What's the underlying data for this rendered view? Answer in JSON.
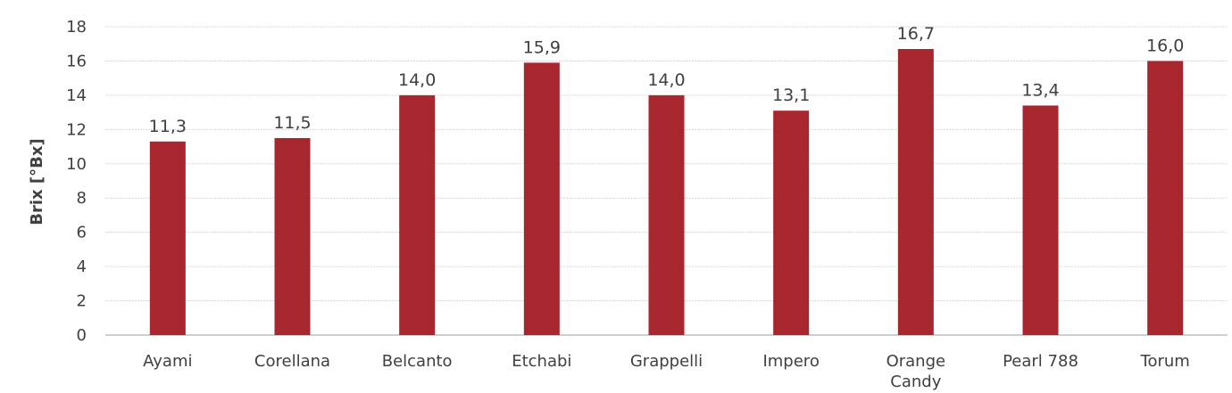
{
  "chart_data": {
    "type": "bar",
    "categories": [
      "Ayami",
      "Corellana",
      "Belcanto",
      "Etchabi",
      "Grappelli",
      "Impero",
      "Orange Candy",
      "Pearl 788",
      "Torum"
    ],
    "category_lines": [
      [
        "Ayami"
      ],
      [
        "Corellana"
      ],
      [
        "Belcanto"
      ],
      [
        "Etchabi"
      ],
      [
        "Grappelli"
      ],
      [
        "Impero"
      ],
      [
        "Orange",
        "Candy"
      ],
      [
        "Pearl 788"
      ],
      [
        "Torum"
      ]
    ],
    "values": [
      11.3,
      11.5,
      14.0,
      15.9,
      14.0,
      13.1,
      16.7,
      13.4,
      16.0
    ],
    "data_labels": [
      "11,3",
      "11,5",
      "14,0",
      "15,9",
      "14,0",
      "13,1",
      "16,7",
      "13,4",
      "16,0"
    ],
    "title": "",
    "xlabel": "",
    "ylabel": "Brix [°Bx]",
    "ylim": [
      0,
      18
    ],
    "yticks": [
      0,
      2,
      4,
      6,
      8,
      10,
      12,
      14,
      16,
      18
    ],
    "grid": true,
    "legend": "none",
    "bar_color": "#a8262e"
  }
}
